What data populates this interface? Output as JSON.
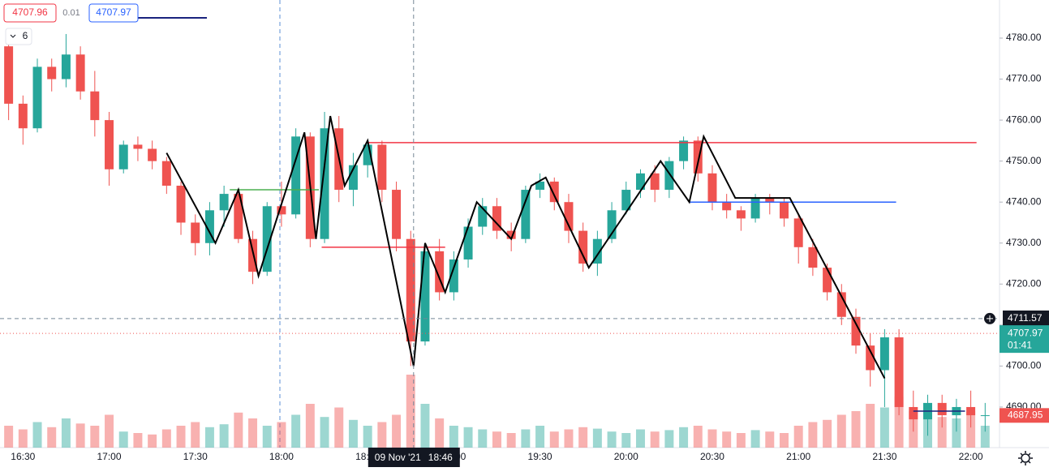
{
  "chart_data": {
    "type": "candlestick",
    "x": [
      "16:25",
      "16:30",
      "16:35",
      "16:40",
      "16:45",
      "16:50",
      "16:55",
      "17:00",
      "17:05",
      "17:10",
      "17:15",
      "17:20",
      "17:25",
      "17:30",
      "17:35",
      "17:40",
      "17:45",
      "17:50",
      "17:55",
      "18:00",
      "18:05",
      "18:10",
      "18:15",
      "18:20",
      "18:25",
      "18:30",
      "18:35",
      "18:40",
      "18:45",
      "18:50",
      "18:55",
      "19:00",
      "19:05",
      "19:10",
      "19:15",
      "19:20",
      "19:25",
      "19:30",
      "19:35",
      "19:40",
      "19:45",
      "19:50",
      "19:55",
      "20:00",
      "20:05",
      "20:10",
      "20:15",
      "20:20",
      "20:25",
      "20:30",
      "20:35",
      "20:40",
      "20:45",
      "20:50",
      "20:55",
      "21:00",
      "21:05",
      "21:10",
      "21:15",
      "21:20",
      "21:25",
      "21:30",
      "21:35",
      "21:40",
      "21:45",
      "21:50",
      "21:55",
      "22:00",
      "22:05"
    ],
    "open": [
      4778,
      4764,
      4758,
      4773,
      4770,
      4776,
      4767,
      4760,
      4748,
      4754,
      4753,
      4750,
      4744,
      4735,
      4730,
      4738,
      4742,
      4731,
      4723,
      4739,
      4737,
      4756,
      4731,
      4758,
      4743,
      4749,
      4754,
      4743,
      4731,
      4706,
      4728,
      4718,
      4726,
      4734,
      4739,
      4733,
      4731,
      4743,
      4745,
      4740,
      4733,
      4725,
      4731,
      4738,
      4743,
      4747,
      4743,
      4750,
      4755,
      4747,
      4740,
      4738,
      4736,
      4741,
      4740,
      4736,
      4729,
      4724,
      4718,
      4712,
      4705,
      4699,
      4707,
      4690,
      4687,
      4691,
      4688,
      4690,
      4688
    ],
    "high": [
      4779,
      4766,
      4775,
      4775,
      4781,
      4778,
      4772,
      4762,
      4755,
      4756,
      4755,
      4751,
      4745,
      4737,
      4740,
      4744,
      4743,
      4733,
      4740,
      4745,
      4758,
      4757,
      4762,
      4761,
      4752,
      4755,
      4755,
      4745,
      4733,
      4730,
      4731,
      4728,
      4736,
      4741,
      4741,
      4735,
      4744,
      4747,
      4746,
      4742,
      4735,
      4733,
      4740,
      4745,
      4748,
      4749,
      4751,
      4756,
      4756,
      4749,
      4742,
      4739,
      4742,
      4742,
      4741,
      4737,
      4731,
      4725,
      4720,
      4714,
      4708,
      4709,
      4709,
      4694,
      4693,
      4693,
      4692,
      4694,
      4691
    ],
    "low": [
      4760,
      4754,
      4757,
      4767,
      4768,
      4765,
      4756,
      4744,
      4747,
      4750,
      4748,
      4742,
      4732,
      4727,
      4727,
      4734,
      4730,
      4720,
      4722,
      4734,
      4736,
      4729,
      4730,
      4740,
      4739,
      4746,
      4740,
      4728,
      4700,
      4705,
      4716,
      4716,
      4724,
      4732,
      4731,
      4728,
      4730,
      4741,
      4738,
      4730,
      4723,
      4722,
      4730,
      4737,
      4741,
      4740,
      4741,
      4748,
      4745,
      4738,
      4736,
      4733,
      4735,
      4737,
      4734,
      4725,
      4722,
      4716,
      4710,
      4703,
      4695,
      4690,
      4688,
      4684,
      4683,
      4685,
      4684,
      4685,
      4684
    ],
    "close": [
      4764,
      4758,
      4773,
      4770,
      4776,
      4767,
      4760,
      4748,
      4754,
      4753,
      4750,
      4744,
      4735,
      4730,
      4738,
      4742,
      4731,
      4723,
      4739,
      4737,
      4756,
      4731,
      4758,
      4743,
      4749,
      4754,
      4743,
      4731,
      4706,
      4728,
      4718,
      4726,
      4734,
      4739,
      4733,
      4731,
      4743,
      4745,
      4740,
      4733,
      4725,
      4731,
      4738,
      4743,
      4747,
      4743,
      4750,
      4755,
      4747,
      4740,
      4738,
      4736,
      4741,
      4740,
      4736,
      4729,
      4724,
      4718,
      4712,
      4705,
      4699,
      4707,
      4690,
      4687,
      4691,
      4688,
      4690,
      4688,
      4688
    ],
    "volume": [
      30,
      25,
      35,
      28,
      40,
      33,
      30,
      45,
      22,
      20,
      18,
      25,
      30,
      35,
      28,
      32,
      48,
      40,
      30,
      35,
      45,
      60,
      42,
      55,
      38,
      30,
      35,
      45,
      100,
      60,
      40,
      30,
      28,
      25,
      22,
      20,
      25,
      30,
      22,
      25,
      28,
      26,
      22,
      20,
      25,
      22,
      24,
      28,
      30,
      25,
      22,
      20,
      24,
      22,
      20,
      30,
      35,
      38,
      45,
      50,
      60,
      55,
      70,
      50,
      45,
      42,
      40,
      50,
      30
    ],
    "up_color": "#26a69a",
    "down_color": "#ef5350",
    "ylim": [
      4680.1,
      4789.3
    ],
    "yticks": [
      {
        "value": 4690,
        "label": "4690.00"
      },
      {
        "value": 4700,
        "label": "4700.00"
      },
      {
        "value": 4710,
        "label": "4710.00"
      },
      {
        "value": 4720,
        "label": "4720.00"
      },
      {
        "value": 4730,
        "label": "4730.00"
      },
      {
        "value": 4740,
        "label": "4740.00"
      },
      {
        "value": 4750,
        "label": "4750.00"
      },
      {
        "value": 4760,
        "label": "4760.00"
      },
      {
        "value": 4770,
        "label": "4770.00"
      },
      {
        "value": 4780,
        "label": "4780.00"
      }
    ],
    "xlim": [
      "16:22",
      "22:10"
    ],
    "xticks": [
      "16:30",
      "17:00",
      "17:30",
      "18:00",
      "18:30",
      "19:00",
      "19:30",
      "20:00",
      "20:30",
      "21:00",
      "21:30",
      "22:00"
    ],
    "volume_lim": [
      0,
      100
    ],
    "zigzag": {
      "color": "#000000",
      "x": [
        "17:20",
        "17:37",
        "17:45",
        "17:52",
        "18:08",
        "18:12",
        "18:17",
        "18:22",
        "18:30",
        "18:46",
        "18:50",
        "18:57",
        "19:08",
        "19:20",
        "19:27",
        "19:32",
        "19:47",
        "20:12",
        "20:22",
        "20:27",
        "20:38",
        "20:57",
        "21:30"
      ],
      "values": [
        4752,
        4730,
        4743,
        4722,
        4757,
        4731,
        4761,
        4744,
        4755,
        4700,
        4730,
        4718,
        4740,
        4731,
        4744,
        4746,
        4724,
        4750,
        4740,
        4756,
        4741,
        4741,
        4697
      ]
    },
    "levels": [
      {
        "value": 4754.5,
        "from": "18:30",
        "to": "22:02",
        "color": "#f23645"
      },
      {
        "value": 4729,
        "from": "18:14",
        "to": "18:57",
        "color": "#f23645"
      },
      {
        "value": 4743,
        "from": "17:42",
        "to": "18:13",
        "color": "#4caf50"
      },
      {
        "value": 4740,
        "from": "20:22",
        "to": "21:34",
        "color": "#2962ff"
      },
      {
        "value": 4689,
        "from": "21:40",
        "to": "21:58",
        "color": "#1a237e"
      }
    ],
    "crosshair": {
      "time": "18:46",
      "date": "09 Nov '21",
      "value": 4711.57
    },
    "last_price": {
      "value": 4707.97,
      "countdown": "01:41"
    },
    "indicator_price": 4687.95,
    "header": {
      "bid": 4707.96,
      "spread": 0.01,
      "ask": 4707.97,
      "indicator_count": 6
    }
  }
}
